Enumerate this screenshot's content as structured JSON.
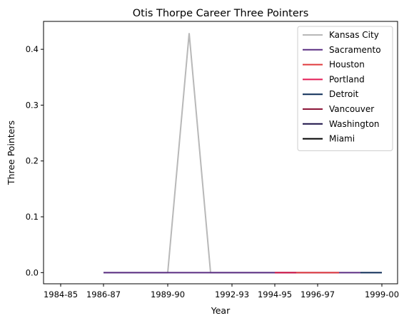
{
  "chart_data": {
    "type": "line",
    "title": "Otis Thorpe Career Three Pointers",
    "xlabel": "Year",
    "ylabel": "Three Pointers",
    "x_ticks": [
      "1984-85",
      "1986-87",
      "1989-90",
      "1992-93",
      "1994-95",
      "1996-97",
      "1999-00"
    ],
    "y_ticks": [
      "0.0",
      "0.1",
      "0.2",
      "0.3",
      "0.4"
    ],
    "ylim": [
      -0.02,
      0.45
    ],
    "xlim": [
      "1984-85",
      "1999-00"
    ],
    "legend_position": "top-right",
    "grid": false,
    "series": [
      {
        "name": "Kansas City",
        "color": "#b8b8b8",
        "points": [
          {
            "x": "1986-87",
            "y": 0.0
          },
          {
            "x": "1988-89",
            "y": 0.0
          },
          {
            "x": "1989-90",
            "y": 0.0
          },
          {
            "x": "1990-91",
            "y": 0.429
          },
          {
            "x": "1991-92",
            "y": 0.0
          },
          {
            "x": "1992-93",
            "y": 0.0
          },
          {
            "x": "1994-95",
            "y": 0.0
          }
        ]
      },
      {
        "name": "Sacramento",
        "color": "#5a2d82",
        "points": [
          {
            "x": "1986-87",
            "y": 0.0
          },
          {
            "x": "1988-89",
            "y": 0.0
          },
          {
            "x": "1997-98",
            "y": 0.0
          },
          {
            "x": "1998-99",
            "y": 0.0
          }
        ]
      },
      {
        "name": "Houston",
        "color": "#ce1141",
        "points": [
          {
            "x": "1994-95",
            "y": 0.0
          },
          {
            "x": "1995-96",
            "y": 0.0
          }
        ]
      },
      {
        "name": "Portland",
        "color": "#e03a3e",
        "points": [
          {
            "x": "1995-96",
            "y": 0.0
          },
          {
            "x": "1997-98",
            "y": 0.0
          }
        ]
      },
      {
        "name": "Detroit",
        "color": "#0c2c56",
        "points": [
          {
            "x": "1998-99",
            "y": 0.0
          },
          {
            "x": "1999-00",
            "y": 0.0
          }
        ]
      },
      {
        "name": "Vancouver",
        "color": "#8b1538",
        "points": []
      },
      {
        "name": "Washington",
        "color": "#1b1147",
        "points": []
      },
      {
        "name": "Miami",
        "color": "#000000",
        "points": []
      }
    ],
    "legend_colors": [
      "#b8b8b8",
      "#5a2d82",
      "#e03a3e",
      "#e31b54",
      "#0c2c56",
      "#8b1538",
      "#1b1147",
      "#000000"
    ]
  }
}
